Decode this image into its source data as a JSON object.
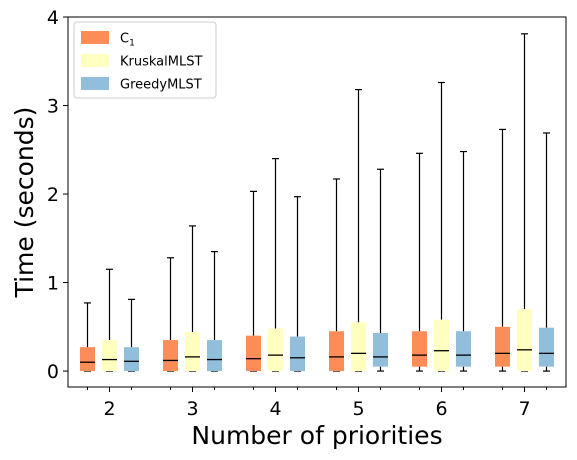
{
  "chart_data": {
    "type": "box",
    "title": "",
    "xlabel": "Number of priorities",
    "ylabel": "Time (seconds)",
    "ylim": [
      -0.18,
      4.0
    ],
    "yticks": [
      0,
      1,
      2,
      3,
      4
    ],
    "grid": false,
    "legend_position": "top-left",
    "categories": [
      "2",
      "3",
      "4",
      "5",
      "6",
      "7"
    ],
    "series": [
      {
        "name": "C",
        "name_subscript": "1",
        "color": "#fc8d59",
        "boxes": [
          {
            "whislo": 0.0,
            "q1": 0.0,
            "med": 0.1,
            "q3": 0.27,
            "whishi": 0.77
          },
          {
            "whislo": 0.0,
            "q1": 0.0,
            "med": 0.12,
            "q3": 0.35,
            "whishi": 1.28
          },
          {
            "whislo": 0.0,
            "q1": 0.0,
            "med": 0.14,
            "q3": 0.4,
            "whishi": 2.03
          },
          {
            "whislo": 0.0,
            "q1": 0.0,
            "med": 0.16,
            "q3": 0.45,
            "whishi": 2.17
          },
          {
            "whislo": 0.0,
            "q1": 0.05,
            "med": 0.18,
            "q3": 0.45,
            "whishi": 2.46
          },
          {
            "whislo": 0.0,
            "q1": 0.05,
            "med": 0.2,
            "q3": 0.5,
            "whishi": 2.73
          }
        ]
      },
      {
        "name": "KruskalMLST",
        "color": "#ffffbf",
        "boxes": [
          {
            "whislo": 0.0,
            "q1": 0.0,
            "med": 0.13,
            "q3": 0.35,
            "whishi": 1.15
          },
          {
            "whislo": 0.0,
            "q1": 0.0,
            "med": 0.16,
            "q3": 0.44,
            "whishi": 1.64
          },
          {
            "whislo": 0.0,
            "q1": 0.0,
            "med": 0.18,
            "q3": 0.48,
            "whishi": 2.4
          },
          {
            "whislo": 0.0,
            "q1": 0.0,
            "med": 0.2,
            "q3": 0.55,
            "whishi": 3.18
          },
          {
            "whislo": 0.0,
            "q1": 0.0,
            "med": 0.23,
            "q3": 0.58,
            "whishi": 3.26
          },
          {
            "whislo": 0.0,
            "q1": 0.0,
            "med": 0.24,
            "q3": 0.7,
            "whishi": 3.81
          }
        ]
      },
      {
        "name": "GreedyMLST",
        "color": "#91bfdb",
        "boxes": [
          {
            "whislo": 0.0,
            "q1": 0.0,
            "med": 0.11,
            "q3": 0.27,
            "whishi": 0.81
          },
          {
            "whislo": 0.0,
            "q1": 0.0,
            "med": 0.13,
            "q3": 0.35,
            "whishi": 1.35
          },
          {
            "whislo": 0.0,
            "q1": 0.0,
            "med": 0.15,
            "q3": 0.39,
            "whishi": 1.97
          },
          {
            "whislo": 0.0,
            "q1": 0.05,
            "med": 0.16,
            "q3": 0.43,
            "whishi": 2.28
          },
          {
            "whislo": 0.0,
            "q1": 0.05,
            "med": 0.18,
            "q3": 0.45,
            "whishi": 2.48
          },
          {
            "whislo": 0.0,
            "q1": 0.05,
            "med": 0.2,
            "q3": 0.49,
            "whishi": 2.69
          }
        ]
      }
    ]
  }
}
